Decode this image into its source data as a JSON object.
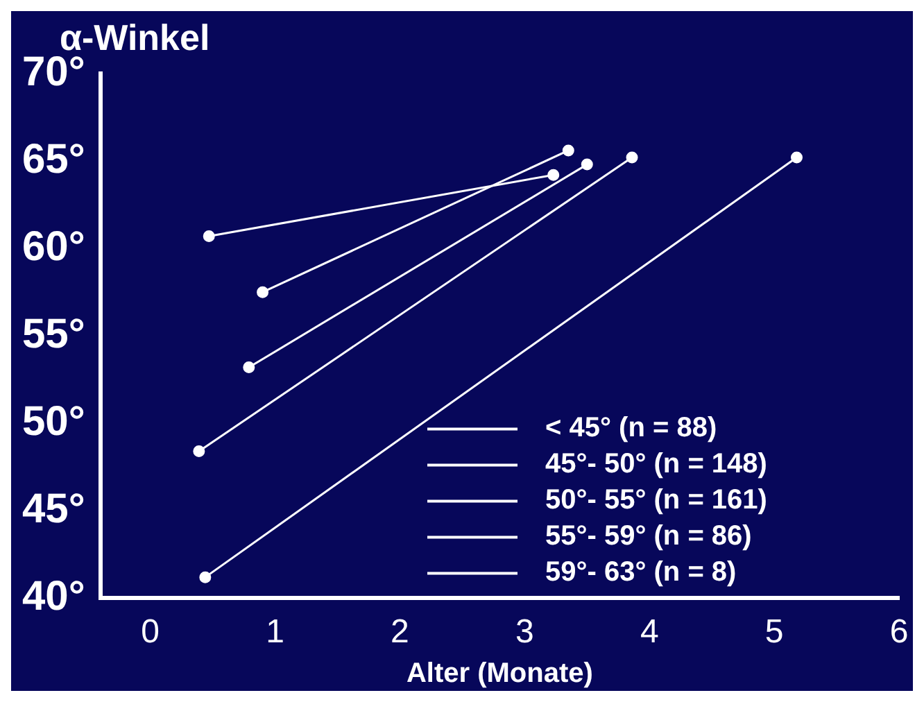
{
  "chart_data": {
    "type": "line",
    "ylabel": "α-Winkel",
    "xlabel": "Alter (Monate)",
    "xlim": [
      -0.4,
      6
    ],
    "xticks": [
      0,
      1,
      2,
      3,
      4,
      5,
      6
    ],
    "ylim": [
      40,
      70
    ],
    "yticks": [
      {
        "value": 40,
        "label": "40°"
      },
      {
        "value": 45,
        "label": "45°"
      },
      {
        "value": 50,
        "label": "50°"
      },
      {
        "value": 55,
        "label": "55°"
      },
      {
        "value": 60,
        "label": "60°"
      },
      {
        "value": 65,
        "label": "65°"
      },
      {
        "value": 70,
        "label": "70°"
      }
    ],
    "series": [
      {
        "name": "< 45° (n = 88)",
        "color": "#ffffff",
        "x": [
          0.44,
          5.18
        ],
        "values": [
          41.2,
          65.2
        ]
      },
      {
        "name": "45°- 50° (n = 148)",
        "color": "#ffffff",
        "x": [
          0.39,
          3.86
        ],
        "values": [
          48.4,
          65.2
        ]
      },
      {
        "name": "50°- 55° (n = 161)",
        "color": "#ffffff",
        "x": [
          0.79,
          3.5
        ],
        "values": [
          53.2,
          64.8
        ]
      },
      {
        "name": "55°- 59° (n = 86)",
        "color": "#ffffff",
        "x": [
          0.9,
          3.35
        ],
        "values": [
          57.5,
          65.6
        ]
      },
      {
        "name": "59°- 63° (n = 8)",
        "color": "#ffffff",
        "x": [
          0.47,
          3.23
        ],
        "values": [
          60.7,
          64.2
        ]
      }
    ],
    "grid": false,
    "legend": "bottom right",
    "marker": "circle",
    "line_style": "solid"
  }
}
